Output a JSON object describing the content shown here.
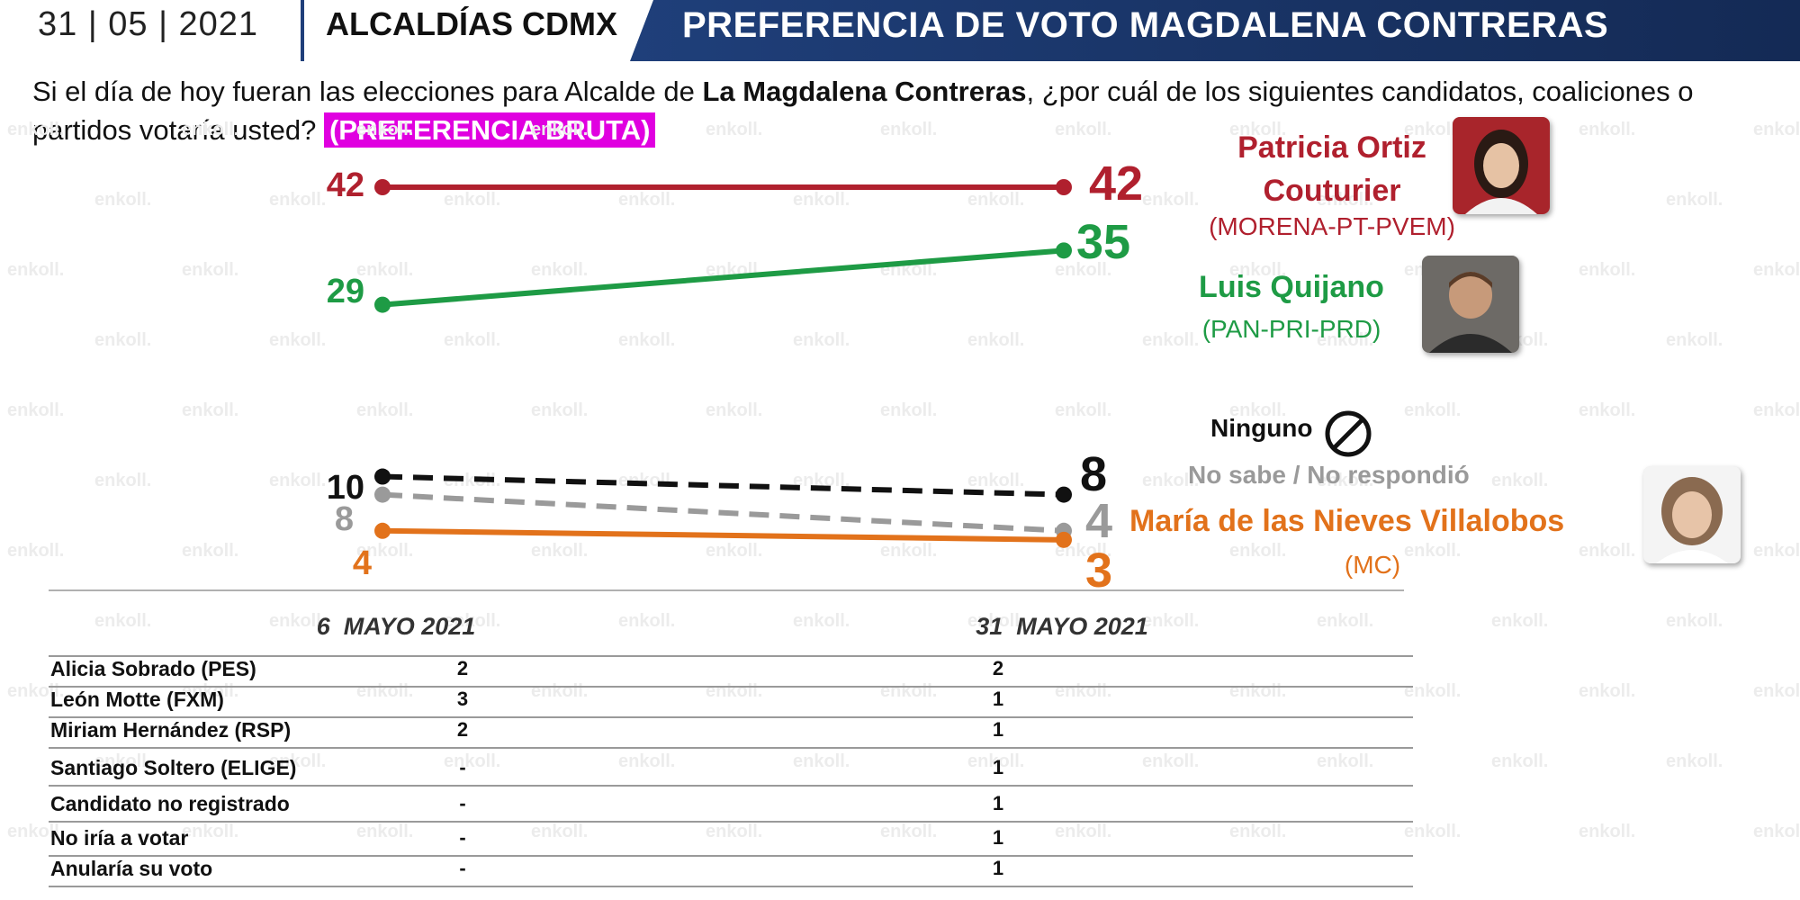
{
  "header": {
    "date": "31 | 05 | 2021",
    "region": "ALCALDÍAS CDMX",
    "title": "PREFERENCIA DE VOTO MAGDALENA CONTRERAS",
    "title_bar_color": "#1f3f7a"
  },
  "question": {
    "part1": "Si el día de hoy fueran las elecciones para Alcalde de ",
    "bold": "La Magdalena Contreras",
    "part2": ", ¿por cuál de los siguientes candidatos, coaliciones o partidos votaría usted? ",
    "tag": "(PREFERENCIA BRUTA)",
    "tag_color": "#e000e0"
  },
  "watermark": "enkoll.",
  "chart_data": {
    "type": "line",
    "categories": [
      "6  MAYO 2021",
      "31  MAYO 2021"
    ],
    "series": [
      {
        "name": "Patricia Ortiz Couturier",
        "values": [
          42,
          42
        ],
        "color": "#b0202e",
        "style": "solid"
      },
      {
        "name": "Luis Quijano",
        "values": [
          29,
          35
        ],
        "color": "#1e9b45",
        "style": "solid"
      },
      {
        "name": "Ninguno",
        "values": [
          10,
          8
        ],
        "color": "#111111",
        "style": "dashed"
      },
      {
        "name": "No sabe / No respondió",
        "values": [
          8,
          4
        ],
        "color": "#9a9a9a",
        "style": "dashed"
      },
      {
        "name": "María de las Nieves Villalobos",
        "values": [
          4,
          3
        ],
        "color": "#e2721b",
        "style": "solid"
      }
    ],
    "ylim": [
      0,
      45
    ]
  },
  "candidates": {
    "c1": {
      "name": "Patricia Ortiz Couturier",
      "party": "(MORENA-PT-PVEM)"
    },
    "c2": {
      "name": "Luis Quijano",
      "party": "(PAN-PRI-PRD)"
    },
    "c3": {
      "name": "María de las Nieves Villalobos",
      "party": "(MC)"
    },
    "ninguno": "Ninguno",
    "nosabe": "No sabe / No respondió"
  },
  "table": {
    "rows": [
      {
        "label": "Alicia Sobrado (PES)",
        "v1": "2",
        "v2": "2"
      },
      {
        "label": "León Motte (FXM)",
        "v1": "3",
        "v2": "1"
      },
      {
        "label": "Miriam Hernández (RSP)",
        "v1": "2",
        "v2": "1"
      },
      {
        "label": "Santiago Soltero (ELIGE)",
        "v1": "-",
        "v2": "1"
      },
      {
        "label": "Candidato no registrado",
        "v1": "-",
        "v2": "1"
      },
      {
        "label": "No iría a votar",
        "v1": "-",
        "v2": "1"
      },
      {
        "label": "Anularía su voto",
        "v1": "-",
        "v2": "1"
      }
    ]
  }
}
